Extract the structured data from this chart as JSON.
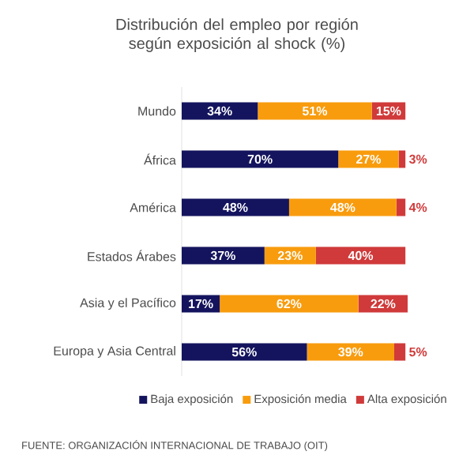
{
  "chart_data": {
    "type": "bar",
    "orientation": "horizontal",
    "stacked": true,
    "title": "Distribución del empleo por región según exposición al shock (%)",
    "categories": [
      "Mundo",
      "África",
      "América",
      "Estados Árabes",
      "Asia y el Pacífico",
      "Europa y Asia Central"
    ],
    "series": [
      {
        "name": "Baja exposición",
        "color": "#14145e",
        "values": [
          34,
          70,
          48,
          37,
          17,
          56
        ],
        "value_labels": [
          "34%",
          "70%",
          "48%",
          "37%",
          "17%",
          "56%"
        ]
      },
      {
        "name": "Exposición media",
        "color": "#f89c0e",
        "values": [
          51,
          27,
          48,
          23,
          62,
          39
        ],
        "value_labels": [
          "51%",
          "27%",
          "48%",
          "23%",
          "62%",
          "39%"
        ]
      },
      {
        "name": "Alta exposición",
        "color": "#d03a3a",
        "values": [
          15,
          3,
          4,
          40,
          22,
          5
        ],
        "value_labels": [
          "15%",
          "3%",
          "4%",
          "40%",
          "22%",
          "5%"
        ]
      }
    ],
    "legend": "bottom",
    "annotations": [
      "FUENTE: ORGANIZACIÓN INTERNACIONAL DE TRABAJO (OIT)"
    ]
  }
}
